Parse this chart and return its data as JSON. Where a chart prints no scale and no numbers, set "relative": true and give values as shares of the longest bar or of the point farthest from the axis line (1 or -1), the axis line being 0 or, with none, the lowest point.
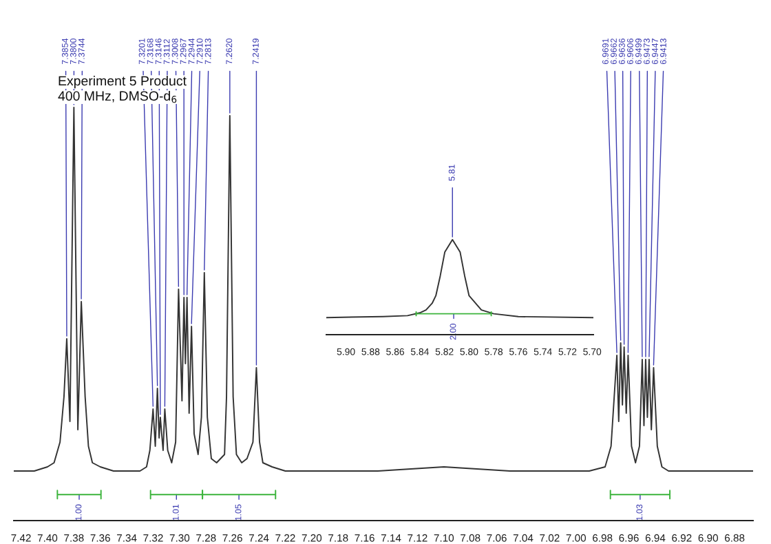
{
  "chart_data": [
    {
      "type": "line",
      "title": "Experiment 5 Product",
      "subtitle": "400 MHz, DMSO-d$_{6}$",
      "relative": true,
      "series": [
        {
          "color": "#333333",
          "x": [
            7.4255,
            7.41,
            7.4,
            7.395,
            7.3905,
            7.3875,
            7.3854,
            7.383,
            7.38,
            7.377,
            7.3744,
            7.3715,
            7.369,
            7.366,
            7.36,
            7.35,
            7.33,
            7.325,
            7.3225,
            7.3201,
            7.3184,
            7.3168,
            7.3155,
            7.3146,
            7.3125,
            7.3112,
            7.309,
            7.306,
            7.303,
            7.3008,
            7.2982,
            7.2967,
            7.2956,
            7.2944,
            7.2928,
            7.291,
            7.289,
            7.286,
            7.2835,
            7.2813,
            7.279,
            7.276,
            7.272,
            7.266,
            7.2645,
            7.262,
            7.2595,
            7.257,
            7.253,
            7.249,
            7.2445,
            7.2419,
            7.2395,
            7.237,
            7.23,
            7.22,
            7.15,
            7.1,
            7.05,
            6.99,
            6.978,
            6.9735,
            6.9691,
            6.9677,
            6.9662,
            6.9649,
            6.9636,
            6.962,
            6.9606,
            6.958,
            6.955,
            6.952,
            6.9499,
            6.9486,
            6.9473,
            6.946,
            6.9447,
            6.943,
            6.9413,
            6.9385,
            6.935,
            6.93,
            6.866
          ],
          "values": [
            0.12,
            0.12,
            0.13,
            0.14,
            0.19,
            0.3,
            0.44,
            0.24,
            1.0,
            0.22,
            0.53,
            0.3,
            0.18,
            0.14,
            0.13,
            0.12,
            0.12,
            0.13,
            0.17,
            0.27,
            0.18,
            0.32,
            0.2,
            0.25,
            0.17,
            0.27,
            0.17,
            0.14,
            0.19,
            0.56,
            0.29,
            0.54,
            0.38,
            0.54,
            0.26,
            0.47,
            0.21,
            0.16,
            0.25,
            0.6,
            0.25,
            0.15,
            0.14,
            0.16,
            0.3,
            0.98,
            0.3,
            0.16,
            0.14,
            0.15,
            0.19,
            0.37,
            0.19,
            0.14,
            0.13,
            0.12,
            0.12,
            0.13,
            0.12,
            0.12,
            0.13,
            0.18,
            0.4,
            0.24,
            0.43,
            0.28,
            0.42,
            0.26,
            0.4,
            0.18,
            0.14,
            0.18,
            0.39,
            0.23,
            0.39,
            0.25,
            0.39,
            0.22,
            0.37,
            0.18,
            0.13,
            0.12,
            0.12
          ]
        },
        {
          "type": "line",
          "color": "#3cb43c",
          "x": [
            7.3925,
            7.3925,
            7.3925,
            7.3595,
            7.3595,
            7.3595
          ],
          "values": [
            0.073,
            0.053,
            0.063,
            0.063,
            0.073,
            0.053
          ]
        },
        {
          "type": "line",
          "color": "#3cb43c",
          "x": [
            7.322,
            7.322,
            7.322,
            7.2827,
            7.2827,
            7.2827
          ],
          "values": [
            0.073,
            0.053,
            0.063,
            0.063,
            0.073,
            0.053
          ]
        },
        {
          "type": "line",
          "color": "#3cb43c",
          "x": [
            7.2827,
            7.2827,
            7.2827,
            7.2274,
            7.2274,
            7.2274
          ],
          "values": [
            0.073,
            0.053,
            0.063,
            0.063,
            0.073,
            0.053
          ]
        },
        {
          "type": "line",
          "color": "#3cb43c",
          "x": [
            6.974,
            6.974,
            6.974,
            6.929,
            6.929,
            6.929
          ],
          "values": [
            0.073,
            0.053,
            0.063,
            0.063,
            0.073,
            0.053
          ]
        }
      ],
      "xlim": [
        7.4255,
        6.866
      ],
      "xticks": [
        {
          "value": 7.42,
          "label": "7.42"
        },
        {
          "value": 7.4,
          "label": "7.40"
        },
        {
          "value": 7.38,
          "label": "7.38"
        },
        {
          "value": 7.36,
          "label": "7.36"
        },
        {
          "value": 7.34,
          "label": "7.34"
        },
        {
          "value": 7.32,
          "label": "7.32"
        },
        {
          "value": 7.3,
          "label": "7.30"
        },
        {
          "value": 7.28,
          "label": "7.28"
        },
        {
          "value": 7.26,
          "label": "7.26"
        },
        {
          "value": 7.24,
          "label": "7.24"
        },
        {
          "value": 7.22,
          "label": "7.22"
        },
        {
          "value": 7.2,
          "label": "7.20"
        },
        {
          "value": 7.18,
          "label": "7.18"
        },
        {
          "value": 7.16,
          "label": "7.16"
        },
        {
          "value": 7.14,
          "label": "7.14"
        },
        {
          "value": 7.12,
          "label": "7.12"
        },
        {
          "value": 7.1,
          "label": "7.10"
        },
        {
          "value": 7.08,
          "label": "7.08"
        },
        {
          "value": 7.06,
          "label": "7.06"
        },
        {
          "value": 7.04,
          "label": "7.04"
        },
        {
          "value": 7.02,
          "label": "7.02"
        },
        {
          "value": 7.0,
          "label": "7.00"
        },
        {
          "value": 6.98,
          "label": "6.98"
        },
        {
          "value": 6.96,
          "label": "6.96"
        },
        {
          "value": 6.94,
          "label": "6.94"
        },
        {
          "value": 6.92,
          "label": "6.92"
        },
        {
          "value": 6.9,
          "label": "6.90"
        },
        {
          "value": 6.88,
          "label": "6.88"
        }
      ],
      "annotations": [
        {
          "text": "7.3854",
          "x": 7.3854,
          "y": 0.44
        },
        {
          "text": "7.3800",
          "x": 7.38,
          "y": 1.0
        },
        {
          "text": "7.3744",
          "x": 7.3744,
          "y": 0.53
        },
        {
          "text": "7.3201",
          "x": 7.3201,
          "y": 0.27
        },
        {
          "text": "7.3168",
          "x": 7.3168,
          "y": 0.32
        },
        {
          "text": "7.3146",
          "x": 7.3146,
          "y": 0.25
        },
        {
          "text": "7.3112",
          "x": 7.3112,
          "y": 0.27
        },
        {
          "text": "7.3008",
          "x": 7.3008,
          "y": 0.56
        },
        {
          "text": "7.2967",
          "x": 7.2967,
          "y": 0.54
        },
        {
          "text": "7.2944",
          "x": 7.2944,
          "y": 0.54
        },
        {
          "text": "7.2910",
          "x": 7.291,
          "y": 0.47
        },
        {
          "text": "7.2813",
          "x": 7.2813,
          "y": 0.6
        },
        {
          "text": "7.2620",
          "x": 7.262,
          "y": 0.98
        },
        {
          "text": "7.2419",
          "x": 7.2419,
          "y": 0.37
        },
        {
          "text": "6.9691",
          "x": 6.9691,
          "y": 0.4
        },
        {
          "text": "6.9662",
          "x": 6.9662,
          "y": 0.43
        },
        {
          "text": "6.9636",
          "x": 6.9636,
          "y": 0.42
        },
        {
          "text": "6.9606",
          "x": 6.9606,
          "y": 0.4
        },
        {
          "text": "6.9499",
          "x": 6.9499,
          "y": 0.39
        },
        {
          "text": "6.9473",
          "x": 6.9473,
          "y": 0.39
        },
        {
          "text": "6.9447",
          "x": 6.9447,
          "y": 0.39
        },
        {
          "text": "6.9413",
          "x": 6.9413,
          "y": 0.37
        },
        {
          "text": "1.00",
          "x": 7.376,
          "y": 0.063
        },
        {
          "text": "1.01",
          "x": 7.3024,
          "y": 0.063
        },
        {
          "text": "1.05",
          "x": 7.2551,
          "y": 0.063
        },
        {
          "text": "1.03",
          "x": 6.9515,
          "y": 0.063
        }
      ],
      "grid": false,
      "legend": false
    },
    {
      "type": "line",
      "relative": true,
      "series": [
        {
          "color": "#333333",
          "x": [
            5.916,
            5.87,
            5.85,
            5.84,
            5.835,
            5.83,
            5.827,
            5.8234,
            5.8197,
            5.8135,
            5.8073,
            5.8036,
            5.8,
            5.79,
            5.78,
            5.76,
            5.699
          ],
          "values": [
            0.18,
            0.19,
            0.2,
            0.23,
            0.26,
            0.33,
            0.41,
            0.62,
            0.87,
            1.0,
            0.87,
            0.62,
            0.41,
            0.26,
            0.22,
            0.19,
            0.18
          ]
        },
        {
          "type": "line",
          "color": "#3cb43c",
          "x": [
            5.843,
            5.843,
            5.843,
            5.782,
            5.782,
            5.782
          ],
          "values": [
            0.24,
            0.2,
            0.22,
            0.22,
            0.24,
            0.2
          ]
        }
      ],
      "xlim": [
        5.916,
        5.699
      ],
      "xticks": [
        {
          "value": 5.9,
          "label": "5.90"
        },
        {
          "value": 5.88,
          "label": "5.88"
        },
        {
          "value": 5.86,
          "label": "5.86"
        },
        {
          "value": 5.84,
          "label": "5.84"
        },
        {
          "value": 5.82,
          "label": "5.82"
        },
        {
          "value": 5.8,
          "label": "5.80"
        },
        {
          "value": 5.78,
          "label": "5.78"
        },
        {
          "value": 5.76,
          "label": "5.76"
        },
        {
          "value": 5.74,
          "label": "5.74"
        },
        {
          "value": 5.72,
          "label": "5.72"
        },
        {
          "value": 5.7,
          "label": "5.70"
        }
      ],
      "annotations": [
        {
          "text": "5.81",
          "x": 5.8135,
          "y": 1.0
        },
        {
          "text": "2.00",
          "x": 5.8125,
          "y": 0.22
        }
      ],
      "grid": false,
      "legend": false
    }
  ]
}
